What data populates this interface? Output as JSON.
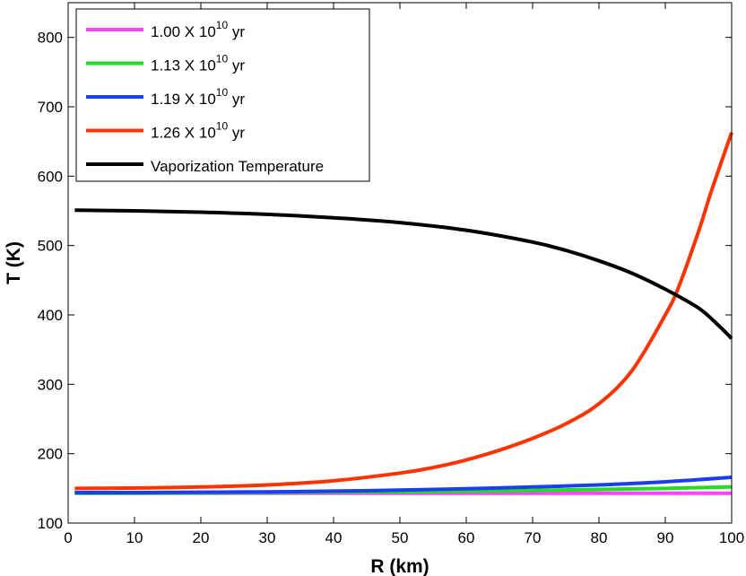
{
  "chart_data": {
    "type": "line",
    "title": "",
    "xlabel": "R (km)",
    "ylabel": "T (K)",
    "xlim": [
      0,
      100
    ],
    "ylim": [
      100,
      850
    ],
    "xticks": [
      0,
      10,
      20,
      30,
      40,
      50,
      60,
      70,
      80,
      90,
      100
    ],
    "yticks": [
      100,
      200,
      300,
      400,
      500,
      600,
      700,
      800
    ],
    "grid": false,
    "legend_position": "top-left",
    "series": [
      {
        "name": "1.00 X 10^10 yr",
        "label_base": "1.00 X 10",
        "label_exp": "10",
        "label_unit": " yr",
        "color": "#ff44ff",
        "x": [
          1,
          10,
          20,
          30,
          40,
          50,
          60,
          70,
          80,
          90,
          100
        ],
        "y": [
          143,
          143,
          143,
          143,
          143,
          143,
          143,
          143,
          143,
          143,
          143
        ]
      },
      {
        "name": "1.13 X 10^10 yr",
        "label_base": "1.13 X 10",
        "label_exp": "10",
        "label_unit": " yr",
        "color": "#22dd22",
        "x": [
          1,
          10,
          20,
          30,
          40,
          50,
          60,
          70,
          80,
          90,
          100
        ],
        "y": [
          143,
          143,
          143.5,
          144,
          144.5,
          145,
          146,
          147,
          148.5,
          150,
          152
        ]
      },
      {
        "name": "1.19 X 10^10 yr",
        "label_base": "1.19 X 10",
        "label_exp": "10",
        "label_unit": " yr",
        "color": "#1a3ff0",
        "x": [
          1,
          10,
          20,
          30,
          40,
          50,
          60,
          70,
          80,
          90,
          100
        ],
        "y": [
          144,
          144,
          144.5,
          145,
          146,
          147.5,
          149.5,
          152,
          155,
          159.5,
          166
        ]
      },
      {
        "name": "1.26 X 10^10 yr",
        "label_base": "1.26 X 10",
        "label_exp": "10",
        "label_unit": " yr",
        "color": "#ff3300",
        "x": [
          1,
          10,
          20,
          30,
          40,
          50,
          55,
          60,
          65,
          70,
          75,
          80,
          85,
          90,
          92,
          95,
          97,
          100
        ],
        "y": [
          150,
          150.5,
          152,
          155,
          161,
          172,
          180,
          191,
          205,
          222,
          243,
          272,
          320,
          400,
          440,
          520,
          580,
          663
        ]
      },
      {
        "name": "Vaporization Temperature",
        "label_base": "Vaporization Temperature",
        "label_exp": "",
        "label_unit": "",
        "color": "#000000",
        "x": [
          1,
          10,
          20,
          30,
          40,
          50,
          60,
          70,
          75,
          80,
          85,
          90,
          95,
          98,
          100
        ],
        "y": [
          551,
          550,
          548,
          545,
          540,
          533,
          522,
          505,
          493,
          478,
          460,
          437,
          410,
          385,
          366
        ]
      }
    ]
  }
}
